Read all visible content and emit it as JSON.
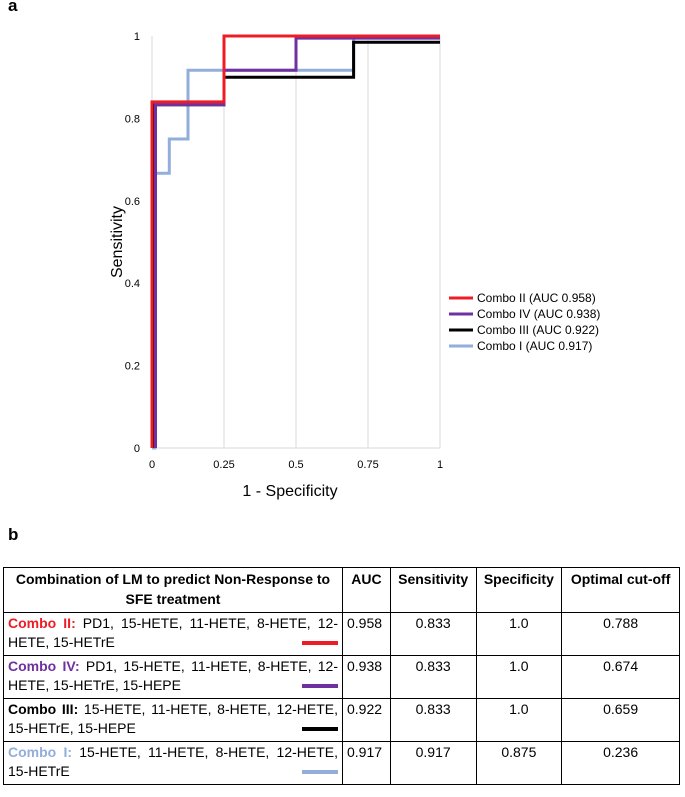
{
  "panel_labels": {
    "a": "a",
    "b": "b"
  },
  "chart_data": {
    "type": "line",
    "subtype": "roc-step",
    "xlabel": "1 -  Specificity",
    "ylabel": "Sensitivity",
    "xlim": [
      0,
      1
    ],
    "ylim": [
      0,
      1
    ],
    "x_ticks": [
      0,
      0.25,
      0.5,
      0.75,
      1
    ],
    "x_tick_labels": [
      "0",
      "0.25",
      "0.5",
      "0.75",
      "1"
    ],
    "y_ticks": [
      0,
      0.2,
      0.4,
      0.6,
      0.8,
      1
    ],
    "y_tick_labels": [
      "0",
      "0.2",
      "0.4",
      "0.6",
      "0.8",
      "1"
    ],
    "grid": "vertical",
    "legend_position": "right",
    "series": [
      {
        "name": "Combo I   (AUC 0.917)",
        "color": "#92aedb",
        "x": [
          0,
          0.01,
          0.01,
          0.02,
          0.02,
          0.06,
          0.06,
          0.125,
          0.125,
          0.7,
          0.7,
          1
        ],
        "y": [
          0,
          0,
          0.667,
          0.667,
          0.667,
          0.667,
          0.75,
          0.75,
          0.917,
          0.917,
          1.0,
          1.0
        ]
      },
      {
        "name": "Combo III (AUC 0.922)",
        "color": "#000000",
        "x": [
          0.008,
          0.008,
          0.25,
          0.25,
          0.7,
          0.7,
          1
        ],
        "y": [
          0,
          0.833,
          0.833,
          0.9,
          0.9,
          0.985,
          0.985
        ]
      },
      {
        "name": "Combo IV (AUC 0.938)",
        "color": "#7030a0",
        "x": [
          0.012,
          0.012,
          0.25,
          0.25,
          0.5,
          0.5,
          1
        ],
        "y": [
          0,
          0.833,
          0.833,
          0.917,
          0.917,
          0.995,
          0.995
        ]
      },
      {
        "name": "Combo II  (AUC 0.958)",
        "color": "#ee1c25",
        "x": [
          0.0,
          0.0,
          0.25,
          0.25,
          1
        ],
        "y": [
          0,
          0.84,
          0.84,
          1.0,
          1.0
        ]
      }
    ],
    "legend_order": [
      "Combo II  (AUC 0.958)",
      "Combo IV (AUC 0.938)",
      "Combo III (AUC 0.922)",
      "Combo I   (AUC 0.917)"
    ]
  },
  "table": {
    "headers": {
      "combination": "Combination of LM to predict Non-Response to SFE treatment",
      "auc": "AUC",
      "sensitivity": "Sensitivity",
      "specificity": "Specificity",
      "cutoff": "Optimal cut-off"
    },
    "rows": [
      {
        "name": "Combo  II:",
        "color": "#ee1c25",
        "markers": " PD1,  15-HETE,  11-HETE,  8-HETE, 12-HETE, 15-HETrE",
        "auc": "0.958",
        "sensitivity": "0.833",
        "specificity": "1.0",
        "cutoff": "0.788"
      },
      {
        "name": "Combo  IV:",
        "color": "#7030a0",
        "markers": " PD1,  15-HETE,  11-HETE,  8-HETE, 12-HETE, 15-HETrE, 15-HEPE",
        "auc": "0.938",
        "sensitivity": "0.833",
        "specificity": "1.0",
        "cutoff": "0.674"
      },
      {
        "name": "Combo  III:",
        "color": "#000000",
        "markers": " 15-HETE,  11-HETE,  8-HETE, 12-HETE, 15-HETrE, 15-HEPE",
        "auc": "0.922",
        "sensitivity": "0.833",
        "specificity": "1.0",
        "cutoff": "0.659"
      },
      {
        "name": "Combo  I:",
        "color": "#92aedb",
        "markers": "  15-HETE,  11-HETE,  8-HETE, 12-HETE, 15-HETrE",
        "auc": "0.917",
        "sensitivity": "0.917",
        "specificity": "0.875",
        "cutoff": "0.236"
      }
    ]
  }
}
